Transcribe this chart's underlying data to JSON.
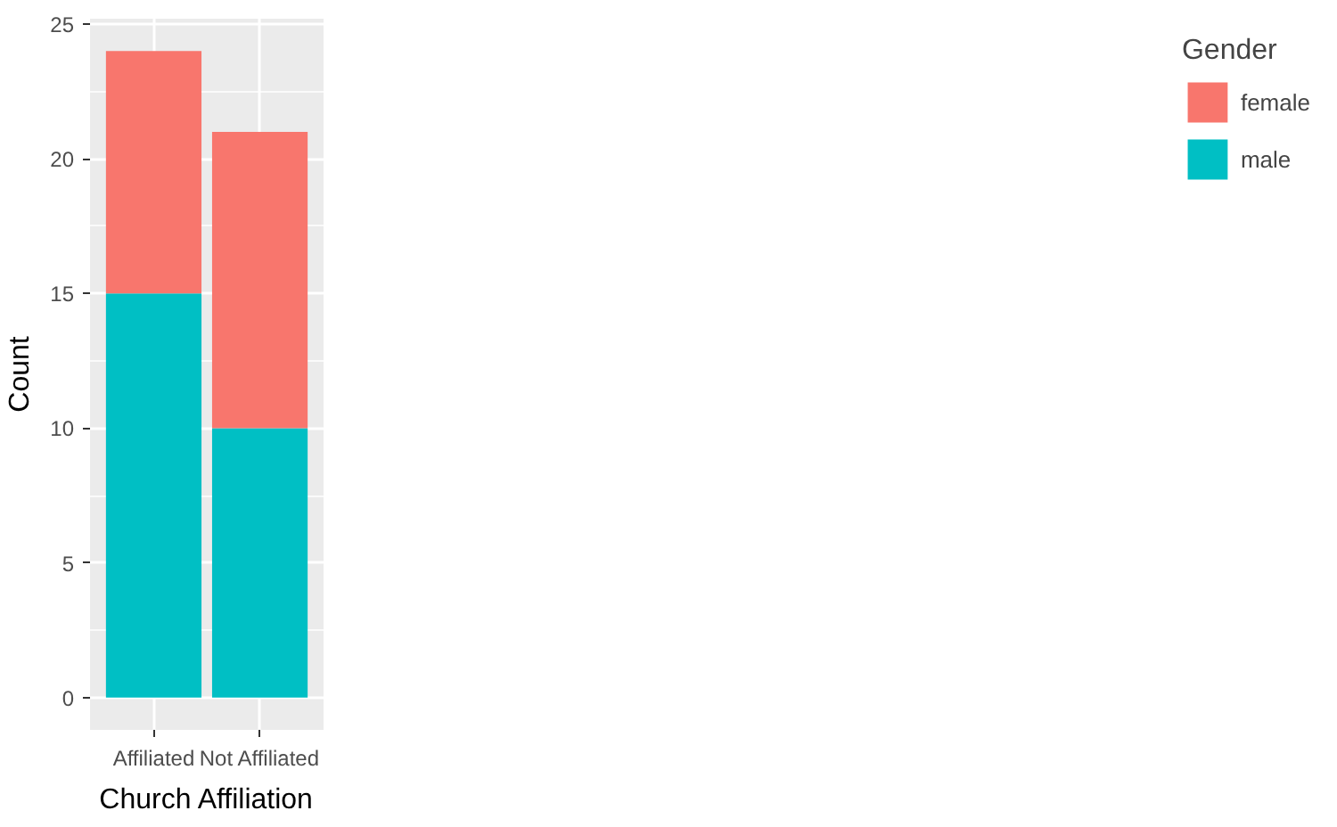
{
  "chart_data": {
    "type": "bar",
    "stacked": true,
    "xlabel": "Church Affiliation",
    "ylabel": "Count",
    "legend_title": "Gender",
    "categories": [
      "Affiliated",
      "Not Affiliated"
    ],
    "series": [
      {
        "name": "male",
        "color": "#00bfc4",
        "values": [
          15,
          10
        ]
      },
      {
        "name": "female",
        "color": "#f8766d",
        "values": [
          9,
          11
        ]
      }
    ],
    "ylim": [
      -1.2,
      25.2
    ],
    "yticks": [
      0,
      5,
      10,
      15,
      20,
      25
    ],
    "grid": true,
    "legend": "right"
  }
}
